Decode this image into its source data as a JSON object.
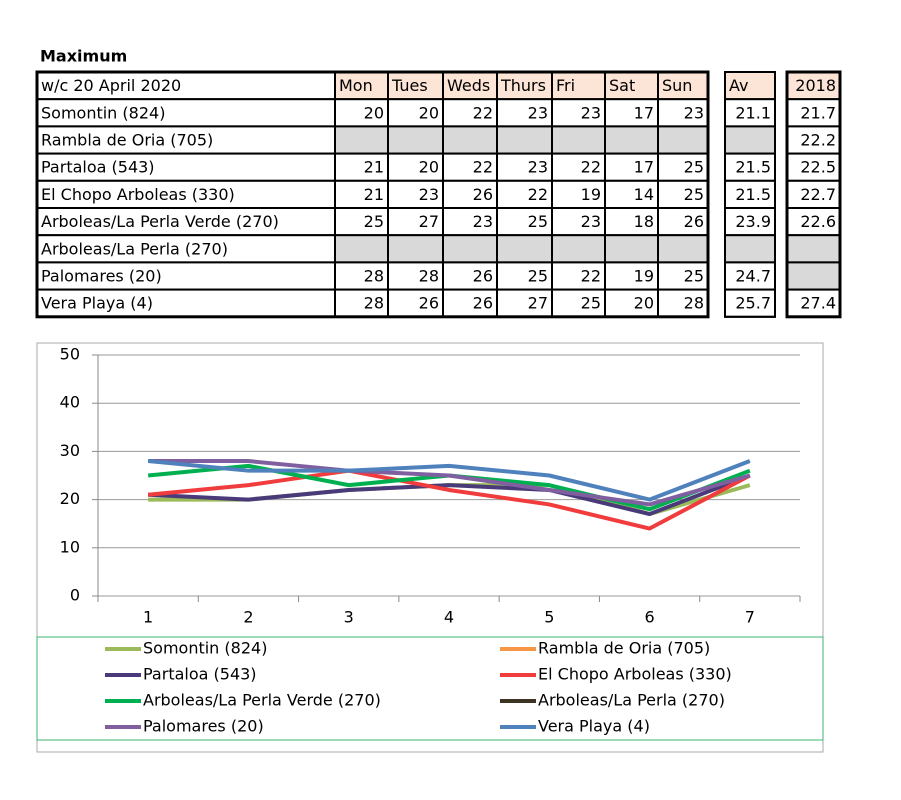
{
  "title": "Maximum",
  "table": {
    "header": {
      "label": "w/c  20 April 2020",
      "days": [
        "Mon",
        "Tues",
        "Weds",
        "Thurs",
        "Fri",
        "Sat",
        "Sun"
      ],
      "av": "Av",
      "year": "2018"
    },
    "rows": [
      {
        "name": "Somontin (824)",
        "values": [
          20,
          20,
          22,
          23,
          23,
          17,
          23
        ],
        "av": 21.1,
        "y2018": 21.7
      },
      {
        "name": "Rambla de Oria (705)",
        "values": [
          null,
          null,
          null,
          null,
          null,
          null,
          null
        ],
        "av": null,
        "y2018": 22.2
      },
      {
        "name": "Partaloa (543)",
        "values": [
          21,
          20,
          22,
          23,
          22,
          17,
          25
        ],
        "av": 21.5,
        "y2018": 22.5
      },
      {
        "name": "El Chopo  Arboleas (330)",
        "values": [
          21,
          23,
          26,
          22,
          19,
          14,
          25
        ],
        "av": 21.5,
        "y2018": 22.7
      },
      {
        "name": "Arboleas/La Perla Verde (270)",
        "values": [
          25,
          27,
          23,
          25,
          23,
          18,
          26
        ],
        "av": 23.9,
        "y2018": 22.6
      },
      {
        "name": "Arboleas/La Perla (270)",
        "values": [
          null,
          null,
          null,
          null,
          null,
          null,
          null
        ],
        "av": null,
        "y2018": null
      },
      {
        "name": "Palomares (20)",
        "values": [
          28,
          28,
          26,
          25,
          22,
          19,
          25
        ],
        "av": 24.7,
        "y2018": null
      },
      {
        "name": "Vera Playa (4)",
        "values": [
          28,
          26,
          26,
          27,
          25,
          20,
          28
        ],
        "av": 25.7,
        "y2018": 27.4
      }
    ]
  },
  "chart_data": {
    "type": "line",
    "categories": [
      "1",
      "2",
      "3",
      "4",
      "5",
      "6",
      "7"
    ],
    "ylim": [
      0,
      50
    ],
    "yticks": [
      0,
      10,
      20,
      30,
      40,
      50
    ],
    "grid": true,
    "series": [
      {
        "name": "Somontin (824)",
        "color": "#9bbb59",
        "values": [
          20,
          20,
          22,
          23,
          23,
          17,
          23
        ]
      },
      {
        "name": "Rambla de Oria (705)",
        "color": "#f79646",
        "values": [
          null,
          null,
          null,
          null,
          null,
          null,
          null
        ]
      },
      {
        "name": "Partaloa (543)",
        "color": "#4b3a7a",
        "values": [
          21,
          20,
          22,
          23,
          22,
          17,
          25
        ]
      },
      {
        "name": "El Chopo  Arboleas (330)",
        "color": "#f03c3c",
        "values": [
          21,
          23,
          26,
          22,
          19,
          14,
          25
        ]
      },
      {
        "name": "Arboleas/La Perla Verde (270)",
        "color": "#00b050",
        "values": [
          25,
          27,
          23,
          25,
          23,
          18,
          26
        ]
      },
      {
        "name": "Arboleas/La Perla (270)",
        "color": "#3d3322",
        "values": [
          null,
          null,
          null,
          null,
          null,
          null,
          null
        ]
      },
      {
        "name": "Palomares (20)",
        "color": "#7f5f9f",
        "values": [
          28,
          28,
          26,
          25,
          22,
          19,
          25
        ]
      },
      {
        "name": "Vera Playa (4)",
        "color": "#4f81bd",
        "values": [
          28,
          26,
          26,
          27,
          25,
          20,
          28
        ]
      }
    ]
  }
}
